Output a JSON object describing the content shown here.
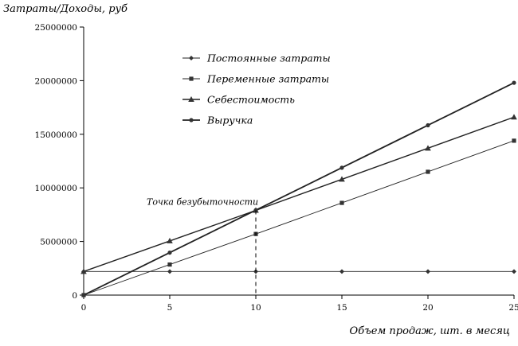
{
  "chart_data": {
    "type": "line",
    "ylabel": "Затраты/Доходы, руб",
    "xlabel": "Объем продаж, шт. в месяц",
    "x": [
      0,
      5,
      10,
      15,
      20,
      25
    ],
    "x_ticks": [
      "0",
      "5",
      "10",
      "15",
      "20",
      "25"
    ],
    "y_ticks": [
      "0",
      "5000000",
      "10000000",
      "15000000",
      "20000000",
      "25000000"
    ],
    "xlim": [
      0,
      25
    ],
    "ylim": [
      0,
      25000000
    ],
    "grid": false,
    "legend_position": "top-center",
    "series": [
      {
        "name": "Постоянные затраты",
        "marker": "diamond",
        "line_width": 0.9,
        "values": [
          2200000,
          2200000,
          2200000,
          2200000,
          2200000,
          2200000
        ]
      },
      {
        "name": "Переменные затраты",
        "marker": "square",
        "line_width": 0.9,
        "values": [
          0,
          2850000,
          5700000,
          8600000,
          11500000,
          14400000
        ]
      },
      {
        "name": "Себестоимость",
        "marker": "triangle",
        "line_width": 1.4,
        "values": [
          2200000,
          5050000,
          7900000,
          10800000,
          13700000,
          16600000
        ]
      },
      {
        "name": "Выручка",
        "marker": "circle",
        "line_width": 1.8,
        "values": [
          0,
          3960000,
          7920000,
          11880000,
          15840000,
          19800000
        ]
      }
    ],
    "annotations": [
      {
        "text": "Точка безубыточности",
        "x": 10,
        "y": 7900000,
        "style": "dashed-drop-line"
      }
    ]
  }
}
